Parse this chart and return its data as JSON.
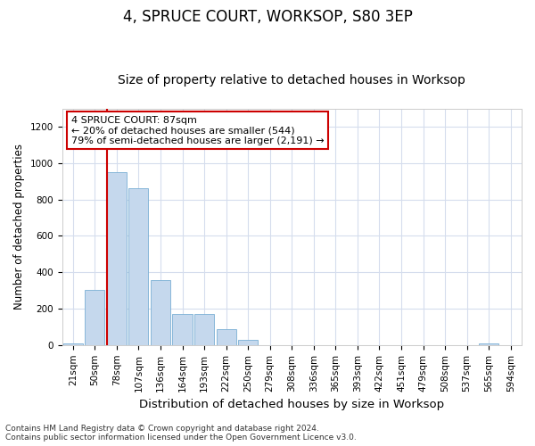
{
  "title": "4, SPRUCE COURT, WORKSOP, S80 3EP",
  "subtitle": "Size of property relative to detached houses in Worksop",
  "xlabel": "Distribution of detached houses by size in Worksop",
  "ylabel": "Number of detached properties",
  "bin_labels": [
    "21sqm",
    "50sqm",
    "78sqm",
    "107sqm",
    "136sqm",
    "164sqm",
    "193sqm",
    "222sqm",
    "250sqm",
    "279sqm",
    "308sqm",
    "336sqm",
    "365sqm",
    "393sqm",
    "422sqm",
    "451sqm",
    "479sqm",
    "508sqm",
    "537sqm",
    "565sqm",
    "594sqm"
  ],
  "bar_heights": [
    10,
    305,
    950,
    860,
    355,
    170,
    170,
    85,
    30,
    0,
    0,
    0,
    0,
    0,
    0,
    0,
    0,
    0,
    0,
    10,
    0
  ],
  "bar_color": "#c5d8ed",
  "bar_edge_color": "#7aafd4",
  "annotation_text": "4 SPRUCE COURT: 87sqm\n← 20% of detached houses are smaller (544)\n79% of semi-detached houses are larger (2,191) →",
  "annotation_box_color": "#ffffff",
  "annotation_box_edge": "#cc0000",
  "vline_color": "#cc0000",
  "ylim": [
    0,
    1300
  ],
  "yticks": [
    0,
    200,
    400,
    600,
    800,
    1000,
    1200
  ],
  "grid_color": "#d5dded",
  "footer_line1": "Contains HM Land Registry data © Crown copyright and database right 2024.",
  "footer_line2": "Contains public sector information licensed under the Open Government Licence v3.0.",
  "title_fontsize": 12,
  "subtitle_fontsize": 10,
  "xlabel_fontsize": 9.5,
  "ylabel_fontsize": 8.5,
  "tick_fontsize": 7.5,
  "footer_fontsize": 6.5,
  "annotation_fontsize": 8
}
